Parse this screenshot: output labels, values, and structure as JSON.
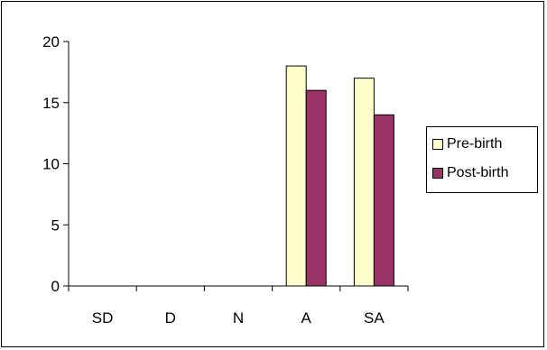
{
  "chart_data": {
    "type": "bar",
    "categories": [
      "SD",
      "D",
      "N",
      "A",
      "SA"
    ],
    "series": [
      {
        "name": "Pre-birth",
        "values": [
          0,
          0,
          0,
          18,
          17
        ],
        "color": "#ffffcc"
      },
      {
        "name": "Post-birth",
        "values": [
          0,
          0,
          0,
          16,
          14
        ],
        "color": "#993366"
      }
    ],
    "ylim": [
      0,
      20
    ],
    "yticks": [
      0,
      5,
      10,
      15,
      20
    ],
    "grid": false,
    "legend_position": "right"
  }
}
